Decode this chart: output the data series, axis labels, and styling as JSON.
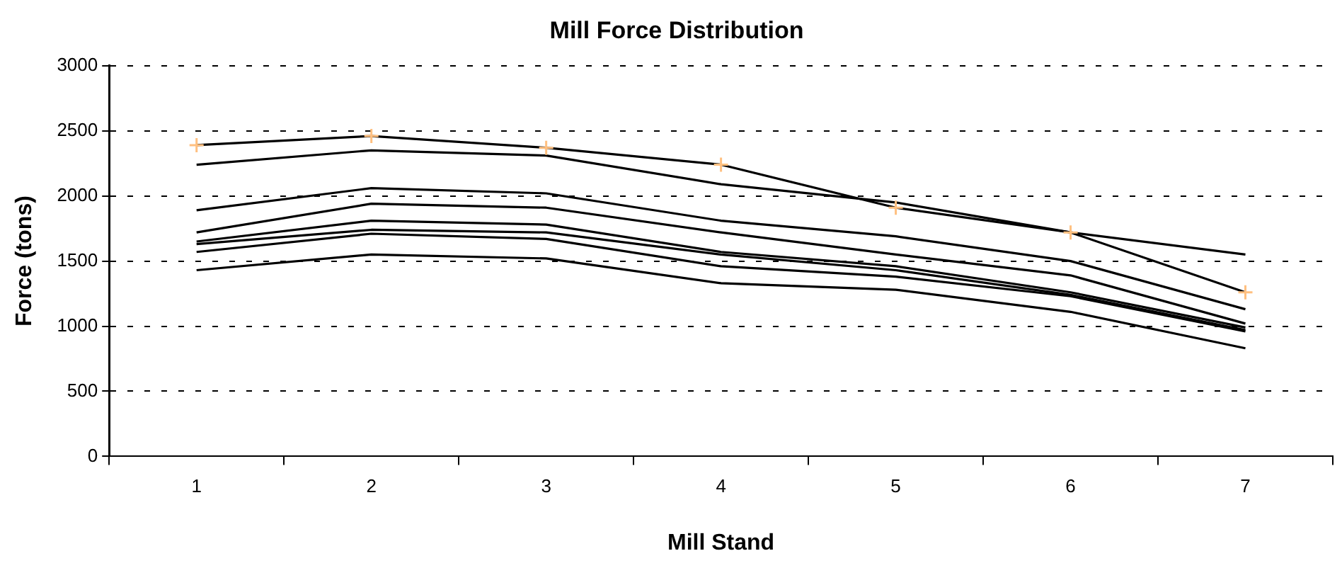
{
  "chart_data": {
    "type": "line",
    "title": "Mill Force Distribution",
    "xlabel": "Mill Stand",
    "ylabel": "Force (tons)",
    "categories": [
      "1",
      "2",
      "3",
      "4",
      "5",
      "6",
      "7"
    ],
    "ylim": [
      0,
      3000
    ],
    "yticks": [
      0,
      500,
      1000,
      1500,
      2000,
      2500,
      3000
    ],
    "grid": "y",
    "legend": false,
    "marker": "none",
    "line_style": "solid",
    "series": [
      {
        "color": "#000000",
        "values": [
          2390,
          2460,
          2370,
          2240,
          1910,
          1720,
          1260
        ]
      },
      {
        "color": "#000000",
        "values": [
          2240,
          2350,
          2310,
          2090,
          1950,
          1720,
          1550
        ]
      },
      {
        "color": "#000000",
        "values": [
          1890,
          2060,
          2020,
          1810,
          1690,
          1500,
          1130
        ]
      },
      {
        "color": "#000000",
        "values": [
          1720,
          1940,
          1910,
          1720,
          1550,
          1390,
          1020
        ]
      },
      {
        "color": "#000000",
        "values": [
          1650,
          1810,
          1780,
          1570,
          1460,
          1260,
          990
        ]
      },
      {
        "color": "#000000",
        "values": [
          1630,
          1740,
          1720,
          1550,
          1430,
          1240,
          970
        ]
      },
      {
        "color": "#000000",
        "values": [
          1570,
          1710,
          1670,
          1460,
          1380,
          1230,
          960
        ]
      },
      {
        "color": "#000000",
        "values": [
          1430,
          1550,
          1520,
          1330,
          1280,
          1110,
          830
        ]
      },
      {
        "type": "scatter",
        "marker": "cross",
        "color": "#ffc080",
        "x": [
          "1",
          "2",
          "3",
          "4",
          "5",
          "6",
          "7"
        ],
        "values": [
          2390,
          2460,
          2370,
          2240,
          1910,
          1720,
          1260
        ]
      }
    ]
  }
}
